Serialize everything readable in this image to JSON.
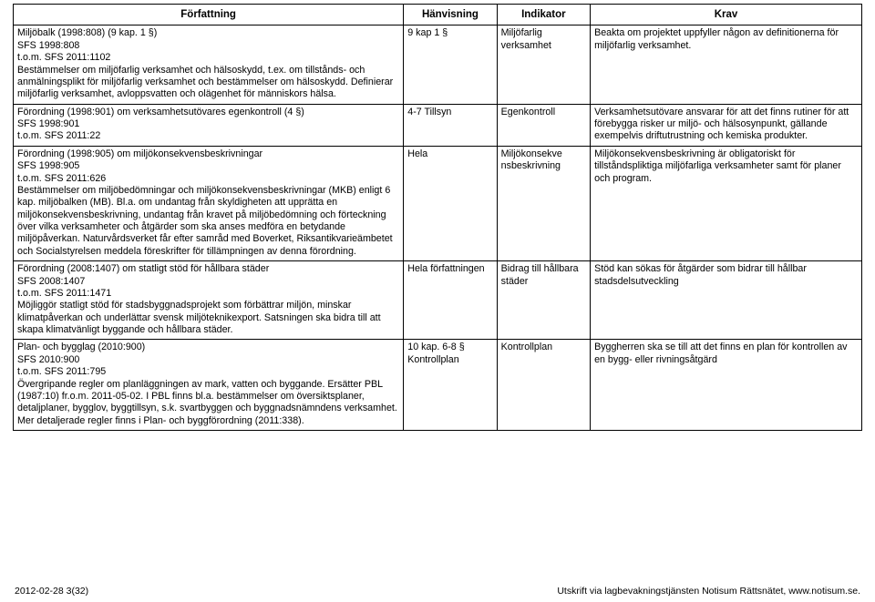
{
  "table": {
    "headers": [
      "Författning",
      "Hänvisning",
      "Indikator",
      "Krav"
    ],
    "rows": [
      {
        "c1": "Miljöbalk (1998:808) (9 kap. 1 §)\nSFS 1998:808\nt.o.m. SFS 2011:1102\nBestämmelser om miljöfarlig verksamhet och hälsoskydd, t.ex. om tillstånds- och anmälningsplikt för miljöfarlig verksamhet och bestämmelser om hälsoskydd. Definierar miljöfarlig verksamhet, avloppsvatten och olägenhet för människors hälsa.",
        "c2": "9 kap 1 §",
        "c3": "Miljöfarlig verksamhet",
        "c4": "Beakta om projektet uppfyller någon av definitionerna för miljöfarlig verksamhet."
      },
      {
        "c1": "Förordning (1998:901) om verksamhetsutövares egenkontroll (4 §)\nSFS 1998:901\nt.o.m. SFS 2011:22",
        "c2": "4-7 Tillsyn",
        "c3": "Egenkontroll",
        "c4": "Verksamhetsutövare ansvarar för att det finns rutiner för att förebygga risker ur miljö- och hälsosynpunkt, gällande exempelvis driftutrustning och kemiska produkter."
      },
      {
        "c1": "Förordning (1998:905) om miljökonsekvensbeskrivningar\nSFS 1998:905\nt.o.m. SFS 2011:626\nBestämmelser om miljöbedömningar och miljökonsekvensbeskrivningar (MKB) enligt 6 kap. miljöbalken (MB). Bl.a. om undantag från skyldigheten att upprätta en miljökonsekvensbeskrivning, undantag från kravet på miljöbedömning och förteckning över vilka verksamheter och åtgärder som ska anses medföra en betydande miljöpåverkan. Naturvårdsverket får efter samråd med Boverket, Riksantikvarieämbetet och Socialstyrelsen meddela föreskrifter för tillämpningen av denna förordning.",
        "c2": "Hela",
        "c3": "Miljökonsekve\nnsbeskrivning",
        "c4": "Miljökonsekvensbeskrivning är obligatoriskt för tillståndspliktiga miljöfarliga verksamheter samt för planer och program."
      },
      {
        "c1": "Förordning (2008:1407) om statligt stöd för hållbara städer\nSFS 2008:1407\nt.o.m. SFS 2011:1471\nMöjliggör statligt stöd för stadsbyggnadsprojekt som förbättrar miljön, minskar klimatpåverkan och underlättar svensk miljöteknikexport. Satsningen ska bidra till att skapa klimatvänligt byggande och hållbara städer.",
        "c2": "Hela författningen",
        "c3": "Bidrag till hållbara städer",
        "c4": "Stöd kan sökas för åtgärder som bidrar till hållbar stadsdelsutveckling"
      },
      {
        "c1": "Plan- och bygglag (2010:900)\nSFS 2010:900\nt.o.m. SFS 2011:795\nÖvergripande regler om planläggningen av mark, vatten och byggande. Ersätter PBL (1987:10) fr.o.m. 2011-05-02. I PBL finns bl.a. bestämmelser om översiktsplaner, detaljplaner, bygglov, byggtillsyn, s.k. svartbyggen och byggnadsnämndens verksamhet. Mer detaljerade regler finns i Plan- och byggförordning (2011:338).",
        "c2": "10 kap. 6-8 § Kontrollplan",
        "c3": "Kontrollplan",
        "c4": "Byggherren ska se till att det finns en plan för kontrollen av en bygg- eller rivningsåtgärd"
      }
    ]
  },
  "footer": {
    "left": "2012-02-28   3(32)",
    "right": "Utskrift via lagbevakningstjänsten Notisum Rättsnätet, www.notisum.se."
  }
}
